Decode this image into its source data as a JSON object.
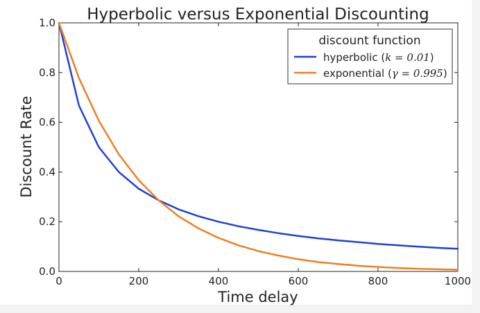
{
  "chart_data": {
    "type": "line",
    "title": "Hyperbolic versus Exponential Discounting",
    "xlabel": "Time delay",
    "ylabel": "Discount Rate",
    "xlim": [
      0,
      1000
    ],
    "ylim": [
      0.0,
      1.0
    ],
    "x_ticks": [
      "0",
      "200",
      "400",
      "600",
      "800",
      "1000"
    ],
    "y_ticks": [
      "0.0",
      "0.2",
      "0.4",
      "0.6",
      "0.8",
      "1.0"
    ],
    "grid": false,
    "legend": {
      "title": "discount function",
      "placement": "top-right"
    },
    "x": [
      0,
      50,
      100,
      150,
      200,
      250,
      300,
      350,
      400,
      450,
      500,
      550,
      600,
      650,
      700,
      750,
      800,
      850,
      900,
      950,
      1000
    ],
    "series": [
      {
        "name": "hyperbolic (k=0.01)",
        "legend_prefix": "hyperbolic (",
        "legend_math": "k = 0.01",
        "legend_suffix": ")",
        "color": "#1f3fd6",
        "values": [
          1.0,
          0.667,
          0.5,
          0.4,
          0.333,
          0.286,
          0.25,
          0.222,
          0.2,
          0.182,
          0.167,
          0.154,
          0.143,
          0.133,
          0.125,
          0.118,
          0.111,
          0.105,
          0.1,
          0.095,
          0.091
        ]
      },
      {
        "name": "exponential (γ=0.995)",
        "legend_prefix": "exponential (",
        "legend_math": "γ = 0.995",
        "legend_suffix": ")",
        "color": "#f07d22",
        "values": [
          1.0,
          0.778,
          0.606,
          0.471,
          0.367,
          0.286,
          0.222,
          0.173,
          0.135,
          0.105,
          0.082,
          0.064,
          0.049,
          0.038,
          0.03,
          0.023,
          0.018,
          0.014,
          0.011,
          0.009,
          0.007
        ]
      }
    ]
  }
}
